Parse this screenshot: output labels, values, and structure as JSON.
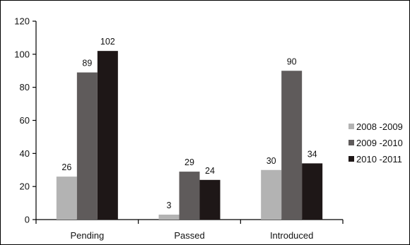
{
  "chart_data": {
    "type": "bar",
    "categories": [
      "Pending",
      "Passed",
      "Introduced"
    ],
    "series": [
      {
        "name": "2008 -2009",
        "values": [
          26,
          3,
          30
        ],
        "color": "#b3b3b3"
      },
      {
        "name": "2009 -2010",
        "values": [
          89,
          29,
          90
        ],
        "color": "#5f5b5b"
      },
      {
        "name": "2010 -2011",
        "values": [
          102,
          24,
          34
        ],
        "color": "#1e1717"
      }
    ],
    "ylim": [
      0,
      120
    ],
    "yticks": [
      0,
      20,
      40,
      60,
      80,
      100,
      120
    ],
    "title": "",
    "xlabel": "",
    "ylabel": "",
    "legend_position": "right",
    "grid": false
  }
}
